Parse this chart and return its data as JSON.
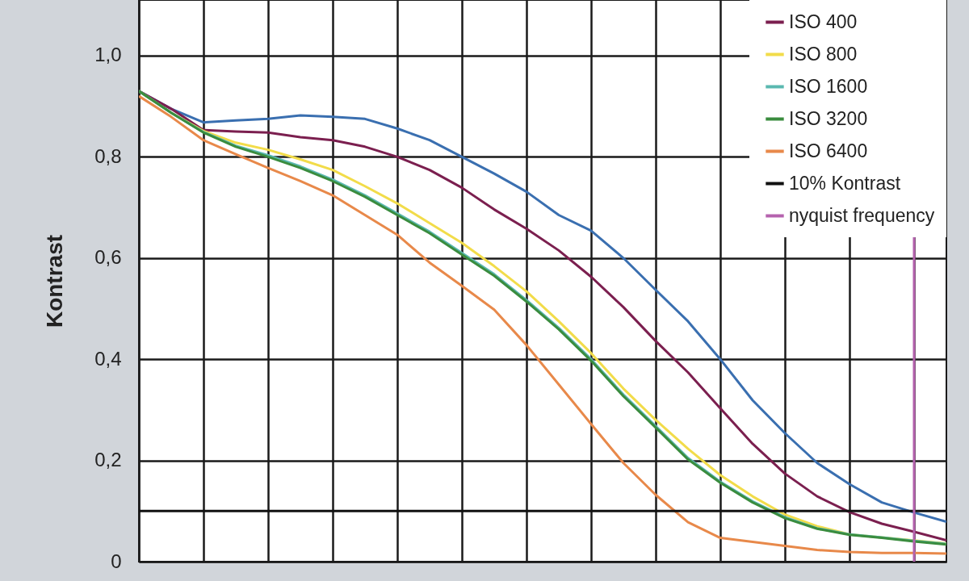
{
  "chart_data": {
    "type": "line",
    "ylabel": "Kontrast",
    "categories": [
      null,
      null,
      null,
      null,
      null,
      null,
      null,
      null,
      null,
      null,
      null,
      null,
      null,
      null,
      null,
      null,
      null,
      null,
      null,
      null,
      null,
      null,
      null,
      null,
      null,
      null
    ],
    "series": [
      {
        "color": "#3a6fb0",
        "values": [
          0.93,
          0.895,
          0.868,
          0.872,
          0.875,
          0.882,
          0.879,
          0.875,
          0.856,
          0.833,
          0.8,
          0.767,
          0.731,
          0.685,
          0.654,
          0.6,
          0.537,
          0.475,
          0.4,
          0.319,
          0.254,
          0.195,
          0.153,
          0.117,
          0.097,
          0.079
        ]
      },
      {
        "name": "ISO 400",
        "color": "#7b1f4f",
        "values": [
          0.93,
          0.895,
          0.853,
          0.85,
          0.848,
          0.839,
          0.833,
          0.82,
          0.8,
          0.774,
          0.739,
          0.696,
          0.658,
          0.615,
          0.563,
          0.503,
          0.436,
          0.374,
          0.303,
          0.233,
          0.174,
          0.129,
          0.098,
          0.075,
          0.059,
          0.042
        ]
      },
      {
        "name": "ISO 800",
        "color": "#f2dc4a",
        "values": [
          0.93,
          0.887,
          0.851,
          0.828,
          0.814,
          0.795,
          0.774,
          0.742,
          0.708,
          0.669,
          0.63,
          0.584,
          0.534,
          0.475,
          0.412,
          0.342,
          0.28,
          0.223,
          0.171,
          0.129,
          0.093,
          0.07,
          0.054,
          0.048,
          0.042,
          0.036
        ]
      },
      {
        "name": "ISO 1600",
        "color": "#5ab8b0",
        "values": [
          0.93,
          0.887,
          0.849,
          0.822,
          0.803,
          0.781,
          0.755,
          0.724,
          0.688,
          0.652,
          0.61,
          0.568,
          0.517,
          0.462,
          0.4,
          0.33,
          0.268,
          0.205,
          0.158,
          0.119,
          0.088,
          0.066,
          0.054,
          0.048,
          0.041,
          0.035
        ]
      },
      {
        "name": "ISO 3200",
        "color": "#3a8c3e",
        "values": [
          0.93,
          0.887,
          0.848,
          0.82,
          0.8,
          0.778,
          0.752,
          0.721,
          0.685,
          0.649,
          0.607,
          0.565,
          0.514,
          0.459,
          0.397,
          0.327,
          0.265,
          0.202,
          0.156,
          0.117,
          0.086,
          0.065,
          0.053,
          0.047,
          0.04,
          0.034
        ]
      },
      {
        "name": "ISO 6400",
        "color": "#e8894a",
        "values": [
          0.92,
          0.879,
          0.833,
          0.805,
          0.778,
          0.752,
          0.724,
          0.685,
          0.646,
          0.591,
          0.545,
          0.498,
          0.428,
          0.35,
          0.272,
          0.195,
          0.132,
          0.078,
          0.047,
          0.039,
          0.031,
          0.023,
          0.019,
          0.017,
          0.017,
          0.016
        ]
      }
    ],
    "ylim": [
      0,
      1.11
    ],
    "yticks": [
      0,
      {
        "value": 0.2,
        "label": "0,2"
      },
      {
        "value": 0.4,
        "label": "0,4"
      },
      {
        "value": 0.6,
        "label": "0,6"
      },
      {
        "value": 0.8,
        "label": "0,8"
      },
      {
        "value": 1.0,
        "label": "1,0"
      }
    ],
    "ref_lines": [
      {
        "axis": "y",
        "value": 0.1,
        "label": "10% Kontrast",
        "color": "#111111"
      },
      {
        "axis": "x",
        "label": "nyquist frequency",
        "color": "#b562ae"
      }
    ],
    "grid": true,
    "legend": "top right",
    "tick_labels": "y"
  }
}
